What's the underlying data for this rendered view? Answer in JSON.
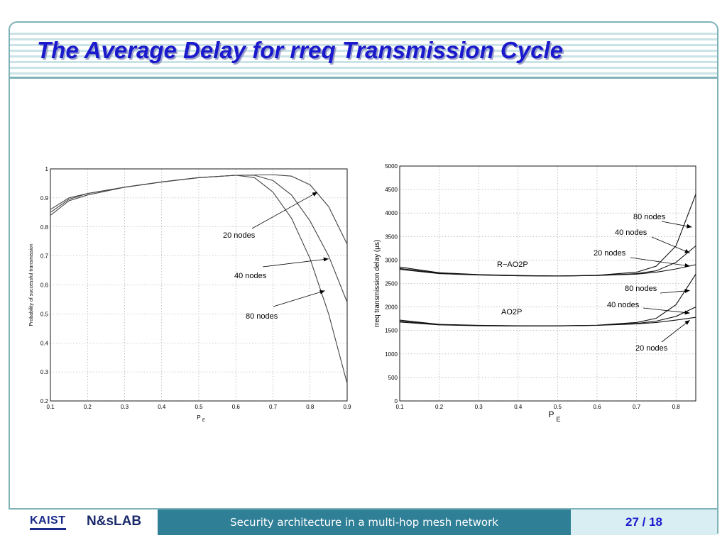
{
  "slide": {
    "title": "The Average Delay for rreq Transmission Cycle"
  },
  "footer": {
    "logo_kaist": "KAIST",
    "logo_lab": "N&sLAB",
    "caption": "Security architecture in a multi-hop mesh network",
    "page": "27 / 18"
  },
  "chart_data": [
    {
      "type": "line",
      "title": "",
      "xlabel": "P_E",
      "ylabel": "Probability of successful transmission",
      "xlim": [
        0.1,
        0.9
      ],
      "ylim": [
        0.2,
        1
      ],
      "x_ticks": [
        "0.1",
        "0.2",
        "0.3",
        "0.4",
        "0.5",
        "0.6",
        "0.7",
        "0.8",
        "0.9"
      ],
      "y_ticks": [
        "0.2",
        "0.3",
        "0.4",
        "0.5",
        "0.6",
        "0.7",
        "0.8",
        "0.9",
        "1"
      ],
      "grid": true,
      "series": [
        {
          "name": "20 nodes",
          "x": [
            0.1,
            0.15,
            0.2,
            0.3,
            0.4,
            0.5,
            0.6,
            0.7,
            0.75,
            0.8,
            0.85,
            0.9
          ],
          "values": [
            0.86,
            0.9,
            0.915,
            0.937,
            0.955,
            0.97,
            0.978,
            0.98,
            0.975,
            0.945,
            0.87,
            0.74
          ]
        },
        {
          "name": "40 nodes",
          "x": [
            0.1,
            0.15,
            0.2,
            0.3,
            0.4,
            0.5,
            0.6,
            0.65,
            0.7,
            0.75,
            0.8,
            0.85,
            0.9
          ],
          "values": [
            0.85,
            0.895,
            0.915,
            0.937,
            0.955,
            0.97,
            0.978,
            0.978,
            0.96,
            0.91,
            0.82,
            0.7,
            0.54
          ]
        },
        {
          "name": "80 nodes",
          "x": [
            0.1,
            0.15,
            0.2,
            0.3,
            0.4,
            0.5,
            0.6,
            0.65,
            0.7,
            0.75,
            0.8,
            0.85,
            0.9
          ],
          "values": [
            0.84,
            0.89,
            0.91,
            0.937,
            0.955,
            0.97,
            0.978,
            0.97,
            0.92,
            0.83,
            0.69,
            0.5,
            0.26
          ]
        }
      ],
      "annotations": [
        "20 nodes",
        "40 nodes",
        "80 nodes"
      ]
    },
    {
      "type": "line",
      "title": "",
      "xlabel": "P_E",
      "ylabel": "rreq transmission delay (µs)",
      "xlim": [
        0.1,
        0.85
      ],
      "ylim": [
        0,
        5000
      ],
      "x_ticks": [
        "0.1",
        "0.2",
        "0.3",
        "0.4",
        "0.5",
        "0.6",
        "0.7",
        "0.8"
      ],
      "y_ticks": [
        "0",
        "500",
        "1000",
        "1500",
        "2000",
        "2500",
        "3000",
        "3500",
        "4000",
        "4500",
        "5000"
      ],
      "grid": true,
      "series": [
        {
          "name": "R-AO2P 20 nodes",
          "x": [
            0.1,
            0.2,
            0.3,
            0.4,
            0.5,
            0.6,
            0.7,
            0.75,
            0.8,
            0.85
          ],
          "values": [
            2850,
            2730,
            2690,
            2670,
            2660,
            2670,
            2700,
            2740,
            2810,
            2900
          ]
        },
        {
          "name": "R-AO2P 40 nodes",
          "x": [
            0.1,
            0.2,
            0.3,
            0.4,
            0.5,
            0.6,
            0.7,
            0.75,
            0.8,
            0.85
          ],
          "values": [
            2820,
            2720,
            2685,
            2665,
            2660,
            2670,
            2710,
            2770,
            2950,
            3300
          ]
        },
        {
          "name": "R-AO2P 80 nodes",
          "x": [
            0.1,
            0.2,
            0.3,
            0.4,
            0.5,
            0.6,
            0.7,
            0.75,
            0.8,
            0.85
          ],
          "values": [
            2800,
            2710,
            2680,
            2665,
            2660,
            2675,
            2740,
            2870,
            3300,
            4400
          ]
        },
        {
          "name": "AO2P 20 nodes",
          "x": [
            0.1,
            0.2,
            0.3,
            0.4,
            0.5,
            0.6,
            0.7,
            0.75,
            0.8,
            0.85
          ],
          "values": [
            1720,
            1630,
            1610,
            1600,
            1600,
            1610,
            1640,
            1670,
            1720,
            1780
          ]
        },
        {
          "name": "AO2P 40 nodes",
          "x": [
            0.1,
            0.2,
            0.3,
            0.4,
            0.5,
            0.6,
            0.7,
            0.75,
            0.8,
            0.85
          ],
          "values": [
            1700,
            1625,
            1605,
            1598,
            1598,
            1610,
            1650,
            1700,
            1800,
            2000
          ]
        },
        {
          "name": "AO2P 80 nodes",
          "x": [
            0.1,
            0.2,
            0.3,
            0.4,
            0.5,
            0.6,
            0.7,
            0.75,
            0.8,
            0.85
          ],
          "values": [
            1680,
            1620,
            1600,
            1595,
            1597,
            1612,
            1670,
            1760,
            2050,
            2700
          ]
        }
      ],
      "annotations": [
        "R−AO2P",
        "AO2P",
        "80 nodes",
        "40 nodes",
        "20 nodes",
        "80 nodes",
        "40 nodes",
        "20 nodes"
      ]
    }
  ]
}
